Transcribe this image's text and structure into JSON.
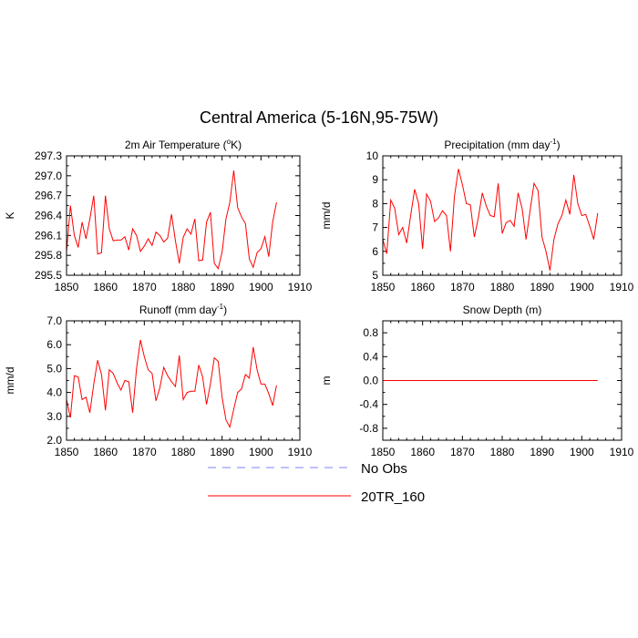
{
  "figure_title": "Central America (5-16N,95-75W)",
  "legend": [
    {
      "label": "No Obs",
      "color": "#8080ff",
      "dash": true
    },
    {
      "label": "20TR_160",
      "color": "#ff0000",
      "dash": false
    }
  ],
  "chart_data": [
    {
      "type": "line",
      "title": "2m Air Temperature (",
      "title_sup": "o",
      "title_suffix": "K)",
      "ylabel": "K",
      "xlabel": "",
      "xlim": [
        1850,
        1910
      ],
      "ylim": [
        295.5,
        297.3
      ],
      "xticks": [
        1850,
        1860,
        1870,
        1880,
        1890,
        1900,
        1910
      ],
      "xtick_labels": [
        "1850",
        "1860",
        "1870",
        "1880",
        "1890",
        "1900",
        "1910"
      ],
      "yticks": [
        295.5,
        295.8,
        296.1,
        296.4,
        296.7,
        297.0,
        297.3
      ],
      "ytick_labels": [
        "295.5",
        "295.8",
        "296.1",
        "296.4",
        "296.7",
        "297.0",
        "297.3"
      ],
      "series": [
        {
          "name": "20TR_160",
          "x": [
            1850,
            1851,
            1852,
            1853,
            1854,
            1855,
            1856,
            1857,
            1858,
            1859,
            1860,
            1861,
            1862,
            1863,
            1864,
            1865,
            1866,
            1867,
            1868,
            1869,
            1870,
            1871,
            1872,
            1873,
            1874,
            1875,
            1876,
            1877,
            1878,
            1879,
            1880,
            1881,
            1882,
            1883,
            1884,
            1885,
            1886,
            1887,
            1888,
            1889,
            1890,
            1891,
            1892,
            1893,
            1894,
            1895,
            1896,
            1897,
            1898,
            1899,
            1900,
            1901,
            1902,
            1903,
            1904
          ],
          "values": [
            295.85,
            296.55,
            296.1,
            295.92,
            296.3,
            296.05,
            296.35,
            296.7,
            295.82,
            295.84,
            296.7,
            296.2,
            296.02,
            296.03,
            296.03,
            296.08,
            295.88,
            296.2,
            296.1,
            295.86,
            295.94,
            296.05,
            295.95,
            296.15,
            296.1,
            296.0,
            296.06,
            296.42,
            296.02,
            295.68,
            296.07,
            296.2,
            296.12,
            296.35,
            295.72,
            295.73,
            296.3,
            296.45,
            295.68,
            295.6,
            295.85,
            296.35,
            296.6,
            297.08,
            296.52,
            296.38,
            296.28,
            295.75,
            295.62,
            295.84,
            295.9,
            296.08,
            295.78,
            296.3,
            296.6
          ]
        }
      ]
    },
    {
      "type": "line",
      "title": "Precipitation (mm day",
      "title_sup": "-1",
      "title_suffix": ")",
      "ylabel": "mm/d",
      "xlabel": "",
      "xlim": [
        1850,
        1910
      ],
      "ylim": [
        5,
        10
      ],
      "xticks": [
        1850,
        1860,
        1870,
        1880,
        1890,
        1900,
        1910
      ],
      "xtick_labels": [
        "1850",
        "1860",
        "1870",
        "1880",
        "1890",
        "1900",
        "1910"
      ],
      "yticks": [
        5,
        6,
        7,
        8,
        9,
        10
      ],
      "ytick_labels": [
        "5",
        "6",
        "7",
        "8",
        "9",
        "10"
      ],
      "series": [
        {
          "name": "20TR_160",
          "x": [
            1850,
            1851,
            1852,
            1853,
            1854,
            1855,
            1856,
            1857,
            1858,
            1859,
            1860,
            1861,
            1862,
            1863,
            1864,
            1865,
            1866,
            1867,
            1868,
            1869,
            1870,
            1871,
            1872,
            1873,
            1874,
            1875,
            1876,
            1877,
            1878,
            1879,
            1880,
            1881,
            1882,
            1883,
            1884,
            1885,
            1886,
            1887,
            1888,
            1889,
            1890,
            1891,
            1892,
            1893,
            1894,
            1895,
            1896,
            1897,
            1898,
            1899,
            1900,
            1901,
            1902,
            1903,
            1904
          ],
          "values": [
            6.5,
            5.9,
            8.15,
            7.8,
            6.7,
            7.0,
            6.35,
            7.5,
            8.6,
            8.0,
            6.1,
            8.4,
            8.1,
            7.25,
            7.4,
            7.7,
            7.5,
            6.0,
            8.3,
            9.45,
            8.8,
            8.0,
            7.95,
            6.6,
            7.4,
            8.45,
            7.9,
            7.5,
            7.45,
            8.85,
            6.75,
            7.2,
            7.3,
            7.05,
            8.45,
            7.8,
            6.5,
            7.7,
            8.85,
            8.55,
            6.6,
            6.0,
            5.2,
            6.5,
            7.15,
            7.5,
            8.15,
            7.55,
            9.2,
            8.0,
            7.5,
            7.55,
            7.05,
            6.5,
            7.6
          ]
        }
      ]
    },
    {
      "type": "line",
      "title": "Runoff (mm day",
      "title_sup": "-1",
      "title_suffix": ")",
      "ylabel": "mm/d",
      "xlabel": "",
      "xlim": [
        1850,
        1910
      ],
      "ylim": [
        2.0,
        7.0
      ],
      "xticks": [
        1850,
        1860,
        1870,
        1880,
        1890,
        1900,
        1910
      ],
      "xtick_labels": [
        "1850",
        "1860",
        "1870",
        "1880",
        "1890",
        "1900",
        "1910"
      ],
      "yticks": [
        2,
        3,
        4,
        5,
        6,
        7
      ],
      "ytick_labels": [
        "2.0",
        "3.0",
        "4.0",
        "5.0",
        "6.0",
        "7.0"
      ],
      "series": [
        {
          "name": "20TR_160",
          "x": [
            1850,
            1851,
            1852,
            1853,
            1854,
            1855,
            1856,
            1857,
            1858,
            1859,
            1860,
            1861,
            1862,
            1863,
            1864,
            1865,
            1866,
            1867,
            1868,
            1869,
            1870,
            1871,
            1872,
            1873,
            1874,
            1875,
            1876,
            1877,
            1878,
            1879,
            1880,
            1881,
            1882,
            1883,
            1884,
            1885,
            1886,
            1887,
            1888,
            1889,
            1890,
            1891,
            1892,
            1893,
            1894,
            1895,
            1896,
            1897,
            1898,
            1899,
            1900,
            1901,
            1902,
            1903,
            1904
          ],
          "values": [
            3.7,
            2.95,
            4.7,
            4.65,
            3.7,
            3.8,
            3.15,
            4.35,
            5.35,
            4.75,
            3.25,
            4.95,
            4.8,
            4.4,
            4.1,
            4.5,
            4.45,
            3.15,
            5.0,
            6.2,
            5.5,
            4.95,
            4.8,
            3.65,
            4.2,
            5.05,
            4.7,
            4.45,
            4.25,
            5.55,
            3.7,
            4.0,
            4.05,
            4.05,
            5.15,
            4.65,
            3.5,
            4.35,
            5.45,
            5.3,
            3.8,
            2.85,
            2.55,
            3.3,
            4.0,
            4.15,
            4.75,
            4.6,
            5.9,
            4.95,
            4.35,
            4.35,
            3.95,
            3.45,
            4.3
          ]
        }
      ]
    },
    {
      "type": "line",
      "title": "Snow Depth (m)",
      "title_sup": "",
      "title_suffix": "",
      "ylabel": "m",
      "xlabel": "",
      "xlim": [
        1850,
        1910
      ],
      "ylim": [
        -1.0,
        1.0
      ],
      "xticks": [
        1850,
        1860,
        1870,
        1880,
        1890,
        1900,
        1910
      ],
      "xtick_labels": [
        "1850",
        "1860",
        "1870",
        "1880",
        "1890",
        "1900",
        "1910"
      ],
      "yticks": [
        -0.8,
        -0.4,
        0.0,
        0.4,
        0.8
      ],
      "ytick_labels": [
        "-0.8",
        "-0.4",
        "0.0",
        "0.4",
        "0.8"
      ],
      "series": [
        {
          "name": "20TR_160",
          "x": [
            1850,
            1851,
            1852,
            1853,
            1854,
            1855,
            1856,
            1857,
            1858,
            1859,
            1860,
            1861,
            1862,
            1863,
            1864,
            1865,
            1866,
            1867,
            1868,
            1869,
            1870,
            1871,
            1872,
            1873,
            1874,
            1875,
            1876,
            1877,
            1878,
            1879,
            1880,
            1881,
            1882,
            1883,
            1884,
            1885,
            1886,
            1887,
            1888,
            1889,
            1890,
            1891,
            1892,
            1893,
            1894,
            1895,
            1896,
            1897,
            1898,
            1899,
            1900,
            1901,
            1902,
            1903,
            1904
          ],
          "values": [
            0,
            0,
            0,
            0,
            0,
            0,
            0,
            0,
            0,
            0,
            0,
            0,
            0,
            0,
            0,
            0,
            0,
            0,
            0,
            0,
            0,
            0,
            0,
            0,
            0,
            0,
            0,
            0,
            0,
            0,
            0,
            0,
            0,
            0,
            0,
            0,
            0,
            0,
            0,
            0,
            0,
            0,
            0,
            0,
            0,
            0,
            0,
            0,
            0,
            0,
            0,
            0,
            0,
            0,
            0
          ]
        }
      ]
    }
  ]
}
